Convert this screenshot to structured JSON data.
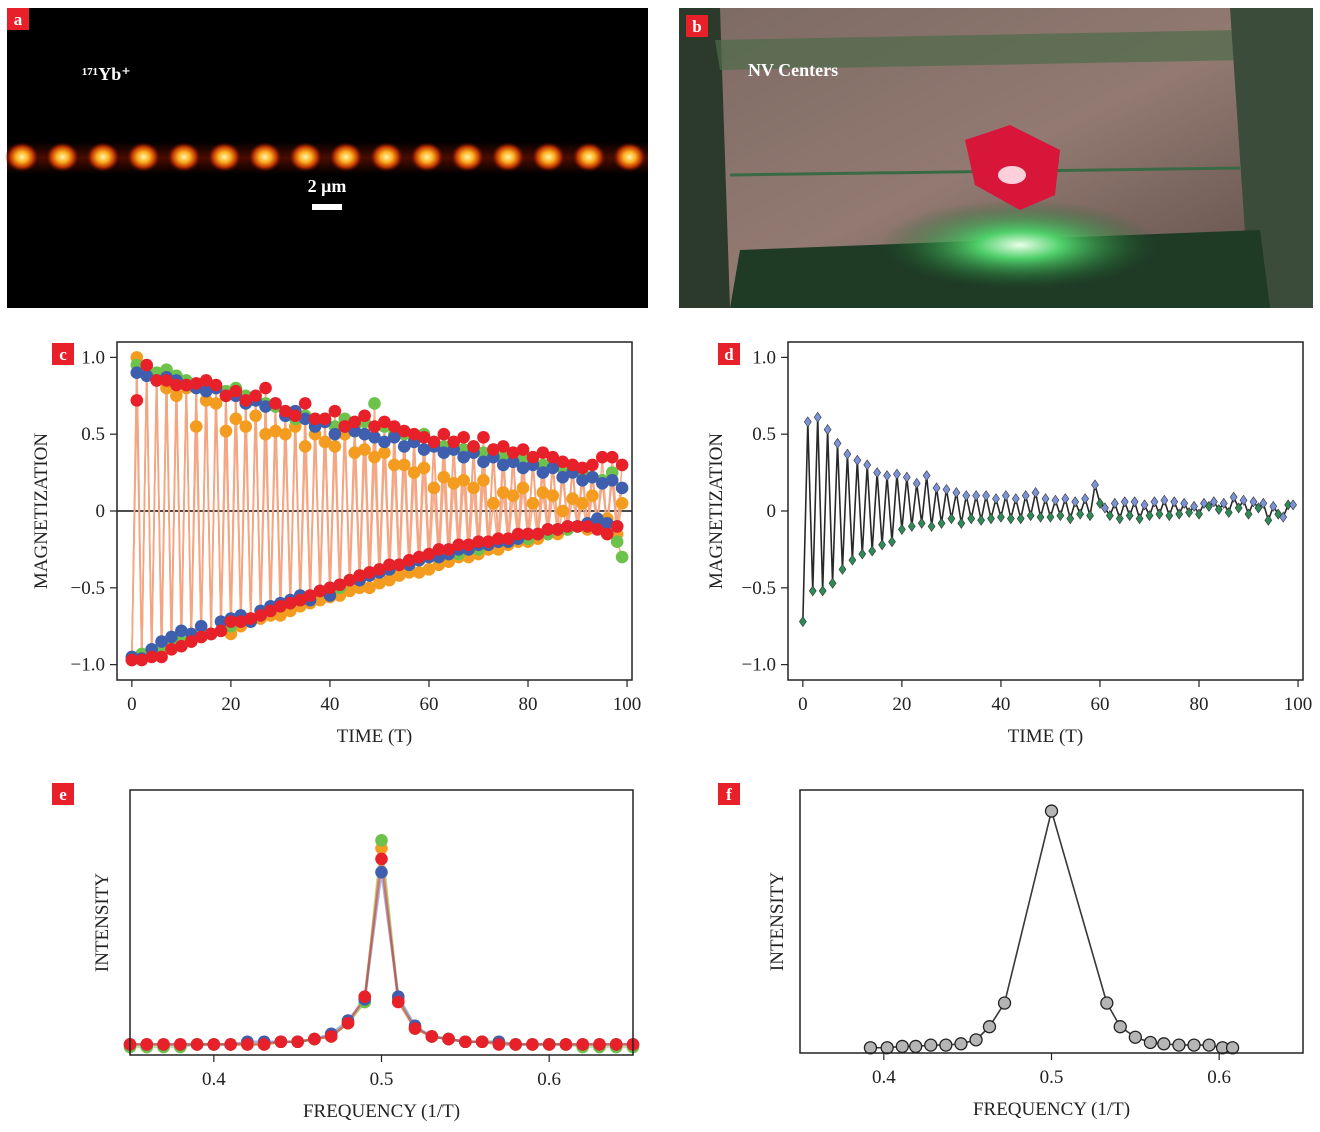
{
  "image_panels": [
    {
      "label": "a",
      "caption": "¹⁷¹Yb⁺",
      "scale_bar": "2 μm"
    },
    {
      "label": "b",
      "caption": "NV Centers"
    }
  ],
  "chart_data": [
    {
      "label": "c",
      "type": "line",
      "xlabel": "TIME (T)",
      "ylabel": "MAGNETIZATION",
      "marker": "circle",
      "line_color": "#f4a582",
      "x": [
        0,
        1,
        2,
        3,
        4,
        5,
        6,
        7,
        8,
        9,
        10,
        11,
        12,
        13,
        14,
        15,
        16,
        17,
        18,
        19,
        20,
        21,
        22,
        23,
        24,
        25,
        26,
        27,
        28,
        29,
        30,
        31,
        32,
        33,
        34,
        35,
        36,
        37,
        38,
        39,
        40,
        41,
        42,
        43,
        44,
        45,
        46,
        47,
        48,
        49,
        50,
        51,
        52,
        53,
        54,
        55,
        56,
        57,
        58,
        59,
        60,
        61,
        62,
        63,
        64,
        65,
        66,
        67,
        68,
        69,
        70,
        71,
        72,
        73,
        74,
        75,
        76,
        77,
        78,
        79,
        80,
        81,
        82,
        83,
        84,
        85,
        86,
        87,
        88,
        89,
        90,
        91,
        92,
        93,
        94,
        95,
        96,
        97,
        98,
        99
      ],
      "xlim": [
        -3,
        101
      ],
      "xticks": [
        0,
        20,
        40,
        60,
        80,
        100
      ],
      "ylim": [
        -1.1,
        1.1
      ],
      "yticks": [
        {
          "value": -1,
          "label": "−1.0"
        },
        {
          "value": -0.5,
          "label": "−0.5"
        },
        0,
        0.5,
        {
          "value": 1,
          "label": "1.0"
        }
      ],
      "hlines": [
        0
      ],
      "series": [
        {
          "color": "#f39c1f",
          "values": [
            -0.97,
            1.0,
            -0.95,
            0.92,
            -0.93,
            0.85,
            -0.9,
            0.8,
            -0.88,
            0.75,
            -0.86,
            0.8,
            -0.84,
            0.55,
            -0.82,
            0.72,
            -0.8,
            0.7,
            -0.78,
            0.52,
            -0.8,
            0.6,
            -0.75,
            0.55,
            -0.72,
            0.62,
            -0.7,
            0.5,
            -0.68,
            0.52,
            -0.68,
            0.5,
            -0.65,
            0.55,
            -0.62,
            0.42,
            -0.6,
            0.5,
            -0.58,
            0.45,
            -0.56,
            0.42,
            -0.55,
            0.5,
            -0.52,
            0.38,
            -0.5,
            0.4,
            -0.5,
            0.35,
            -0.47,
            0.38,
            -0.45,
            0.3,
            -0.42,
            0.3,
            -0.4,
            0.25,
            -0.4,
            0.28,
            -0.38,
            0.15,
            -0.35,
            0.22,
            -0.33,
            0.18,
            -0.3,
            0.2,
            -0.3,
            0.15,
            -0.28,
            0.2,
            -0.25,
            0.05,
            -0.25,
            0.12,
            -0.22,
            0.1,
            -0.2,
            0.15,
            -0.2,
            0.05,
            -0.18,
            0.12,
            -0.15,
            0.1,
            -0.15,
            0.0,
            -0.12,
            0.08,
            -0.1,
            0.05,
            -0.12,
            0.1,
            -0.08,
            -0.1,
            -0.05,
            0.2,
            -0.15,
            0.05
          ]
        },
        {
          "color": "#6cc24a",
          "values": [
            -0.96,
            0.95,
            -0.93,
            0.93,
            -0.92,
            0.9,
            -0.88,
            0.92,
            -0.87,
            0.88,
            -0.85,
            0.85,
            -0.85,
            0.83,
            -0.82,
            0.82,
            -0.8,
            0.8,
            -0.78,
            0.78,
            -0.75,
            0.8,
            -0.72,
            0.75,
            -0.7,
            0.72,
            -0.68,
            0.7,
            -0.65,
            0.68,
            -0.62,
            0.65,
            -0.6,
            0.6,
            -0.58,
            0.62,
            -0.55,
            0.58,
            -0.52,
            0.6,
            -0.5,
            0.55,
            -0.5,
            0.6,
            -0.45,
            0.55,
            -0.42,
            0.58,
            -0.4,
            0.7,
            -0.38,
            0.55,
            -0.38,
            0.5,
            -0.35,
            0.5,
            -0.35,
            0.48,
            -0.32,
            0.5,
            -0.3,
            0.45,
            -0.3,
            0.42,
            -0.28,
            0.45,
            -0.28,
            0.4,
            -0.25,
            0.42,
            -0.25,
            0.38,
            -0.22,
            0.4,
            -0.2,
            0.35,
            -0.2,
            0.38,
            -0.18,
            0.35,
            -0.18,
            0.32,
            -0.15,
            0.3,
            -0.15,
            0.32,
            -0.12,
            0.28,
            -0.12,
            0.3,
            -0.1,
            0.25,
            -0.1,
            0.22,
            -0.08,
            0.2,
            -0.15,
            0.25,
            -0.2,
            -0.3
          ]
        },
        {
          "color": "#3f5fae",
          "values": [
            -0.95,
            0.9,
            -0.96,
            0.88,
            -0.9,
            0.85,
            -0.85,
            0.87,
            -0.82,
            0.85,
            -0.78,
            0.82,
            -0.8,
            0.8,
            -0.75,
            0.78,
            -0.8,
            0.8,
            -0.72,
            0.75,
            -0.7,
            0.75,
            -0.68,
            0.7,
            -0.72,
            0.72,
            -0.65,
            0.68,
            -0.62,
            0.7,
            -0.6,
            0.62,
            -0.58,
            0.65,
            -0.55,
            0.6,
            -0.58,
            0.55,
            -0.52,
            0.58,
            -0.55,
            0.5,
            -0.48,
            0.55,
            -0.45,
            0.52,
            -0.45,
            0.5,
            -0.42,
            0.48,
            -0.4,
            0.45,
            -0.38,
            0.48,
            -0.35,
            0.42,
            -0.35,
            0.45,
            -0.32,
            0.4,
            -0.3,
            0.42,
            -0.3,
            0.38,
            -0.28,
            0.4,
            -0.25,
            0.35,
            -0.25,
            0.38,
            -0.22,
            0.32,
            -0.22,
            0.35,
            -0.2,
            0.3,
            -0.2,
            0.32,
            -0.18,
            0.28,
            -0.15,
            0.3,
            -0.15,
            0.25,
            -0.12,
            0.28,
            -0.12,
            0.22,
            -0.1,
            0.25,
            -0.1,
            0.2,
            -0.08,
            0.22,
            -0.05,
            0.18,
            -0.08,
            0.2,
            -0.1,
            0.15
          ]
        },
        {
          "color": "#e8202a",
          "values": [
            -0.97,
            0.72,
            -0.97,
            0.95,
            -0.95,
            0.85,
            -0.95,
            0.85,
            -0.9,
            0.82,
            -0.88,
            0.82,
            -0.85,
            0.83,
            -0.82,
            0.85,
            -0.8,
            0.82,
            -0.78,
            0.75,
            -0.72,
            0.78,
            -0.72,
            0.72,
            -0.7,
            0.75,
            -0.68,
            0.8,
            -0.65,
            0.7,
            -0.62,
            0.65,
            -0.6,
            0.62,
            -0.58,
            0.7,
            -0.55,
            0.6,
            -0.52,
            0.6,
            -0.5,
            0.65,
            -0.48,
            0.55,
            -0.45,
            0.58,
            -0.42,
            0.62,
            -0.4,
            0.55,
            -0.38,
            0.58,
            -0.35,
            0.55,
            -0.35,
            0.52,
            -0.32,
            0.5,
            -0.3,
            0.48,
            -0.28,
            0.45,
            -0.25,
            0.5,
            -0.25,
            0.45,
            -0.22,
            0.48,
            -0.22,
            0.42,
            -0.2,
            0.48,
            -0.2,
            0.4,
            -0.18,
            0.42,
            -0.18,
            0.38,
            -0.15,
            0.4,
            -0.15,
            0.35,
            -0.15,
            0.38,
            -0.12,
            0.35,
            -0.12,
            0.32,
            -0.1,
            0.3,
            -0.1,
            0.28,
            -0.1,
            0.3,
            -0.12,
            0.35,
            -0.15,
            0.35,
            -0.1,
            0.3
          ]
        }
      ]
    },
    {
      "label": "d",
      "type": "line",
      "xlabel": "TIME (T)",
      "ylabel": "MAGNETIZATION",
      "marker": "diamond",
      "line_color": "#111111",
      "marker_colors": [
        "#2e8b57",
        "#7b93d6"
      ],
      "x": [
        0,
        1,
        2,
        3,
        4,
        5,
        6,
        7,
        8,
        9,
        10,
        11,
        12,
        13,
        14,
        15,
        16,
        17,
        18,
        19,
        20,
        21,
        22,
        23,
        24,
        25,
        26,
        27,
        28,
        29,
        30,
        31,
        32,
        33,
        34,
        35,
        36,
        37,
        38,
        39,
        40,
        41,
        42,
        43,
        44,
        45,
        46,
        47,
        48,
        49,
        50,
        51,
        52,
        53,
        54,
        55,
        56,
        57,
        58,
        59,
        60,
        61,
        62,
        63,
        64,
        65,
        66,
        67,
        68,
        69,
        70,
        71,
        72,
        73,
        74,
        75,
        76,
        77,
        78,
        79,
        80,
        81,
        82,
        83,
        84,
        85,
        86,
        87,
        88,
        89,
        90,
        91,
        92,
        93,
        94,
        95,
        96,
        97,
        98,
        99
      ],
      "xlim": [
        -3,
        101
      ],
      "xticks": [
        0,
        20,
        40,
        60,
        80,
        100
      ],
      "ylim": [
        -1.1,
        1.1
      ],
      "yticks": [
        {
          "value": -1,
          "label": "−1.0"
        },
        {
          "value": -0.5,
          "label": "−0.5"
        },
        0,
        0.5,
        {
          "value": 1,
          "label": "1.0"
        }
      ],
      "series": [
        {
          "values": [
            -0.72,
            0.58,
            -0.52,
            0.61,
            -0.52,
            0.53,
            -0.47,
            0.44,
            -0.38,
            0.37,
            -0.32,
            0.33,
            -0.28,
            0.3,
            -0.26,
            0.25,
            -0.22,
            0.23,
            -0.2,
            0.24,
            -0.12,
            0.22,
            -0.1,
            0.18,
            -0.08,
            0.23,
            -0.1,
            0.15,
            -0.08,
            0.14,
            -0.05,
            0.12,
            -0.08,
            0.1,
            -0.05,
            0.1,
            -0.06,
            0.1,
            -0.05,
            0.08,
            -0.04,
            0.1,
            -0.05,
            0.08,
            -0.05,
            0.1,
            -0.03,
            0.12,
            -0.04,
            0.08,
            -0.04,
            0.07,
            -0.03,
            0.08,
            -0.05,
            0.06,
            -0.02,
            0.08,
            -0.03,
            0.17,
            0.05,
            0.02,
            -0.03,
            0.05,
            -0.05,
            0.06,
            -0.03,
            0.06,
            -0.05,
            0.04,
            -0.03,
            0.06,
            -0.02,
            0.07,
            -0.03,
            0.06,
            -0.02,
            0.05,
            -0.01,
            0.03,
            -0.02,
            0.05,
            0.03,
            0.06,
            0.01,
            0.05,
            -0.01,
            0.09,
            0.02,
            0.07,
            -0.02,
            0.06,
            0.02,
            0.05,
            -0.06,
            0.03,
            -0.02,
            -0.04,
            0.04,
            0.04
          ]
        }
      ]
    },
    {
      "label": "e",
      "type": "line",
      "xlabel": "FREQUENCY (1/T)",
      "ylabel": "INTENSITY",
      "marker": "circle",
      "x": [
        0.35,
        0.36,
        0.37,
        0.38,
        0.39,
        0.4,
        0.41,
        0.42,
        0.43,
        0.44,
        0.45,
        0.46,
        0.47,
        0.48,
        0.49,
        0.5,
        0.51,
        0.52,
        0.53,
        0.54,
        0.55,
        0.56,
        0.57,
        0.58,
        0.59,
        0.6,
        0.61,
        0.62,
        0.63,
        0.64,
        0.65
      ],
      "xlim": [
        0.35,
        0.65
      ],
      "xticks": [
        0.4,
        0.5,
        0.6
      ],
      "ylim": [
        0,
        1
      ],
      "series": [
        {
          "color": "#f39c1f",
          "values": [
            0.04,
            0.04,
            0.04,
            0.04,
            0.04,
            0.04,
            0.04,
            0.04,
            0.04,
            0.05,
            0.05,
            0.06,
            0.07,
            0.12,
            0.2,
            0.78,
            0.21,
            0.1,
            0.07,
            0.06,
            0.05,
            0.05,
            0.05,
            0.04,
            0.04,
            0.04,
            0.04,
            0.04,
            0.04,
            0.04,
            0.04
          ]
        },
        {
          "color": "#6cc24a",
          "values": [
            0.03,
            0.03,
            0.03,
            0.03,
            0.04,
            0.04,
            0.04,
            0.04,
            0.04,
            0.05,
            0.05,
            0.06,
            0.07,
            0.12,
            0.2,
            0.81,
            0.21,
            0.1,
            0.07,
            0.06,
            0.05,
            0.05,
            0.04,
            0.04,
            0.04,
            0.04,
            0.04,
            0.03,
            0.03,
            0.03,
            0.03
          ]
        },
        {
          "color": "#3f5fae",
          "values": [
            0.04,
            0.04,
            0.04,
            0.04,
            0.04,
            0.04,
            0.04,
            0.05,
            0.05,
            0.05,
            0.05,
            0.06,
            0.08,
            0.13,
            0.21,
            0.69,
            0.22,
            0.11,
            0.07,
            0.06,
            0.05,
            0.05,
            0.05,
            0.04,
            0.04,
            0.04,
            0.04,
            0.04,
            0.04,
            0.04,
            0.04
          ]
        },
        {
          "color": "#e8202a",
          "values": [
            0.04,
            0.04,
            0.04,
            0.04,
            0.04,
            0.04,
            0.04,
            0.04,
            0.04,
            0.05,
            0.05,
            0.06,
            0.07,
            0.12,
            0.22,
            0.74,
            0.2,
            0.1,
            0.07,
            0.06,
            0.05,
            0.05,
            0.04,
            0.04,
            0.04,
            0.04,
            0.04,
            0.04,
            0.04,
            0.04,
            0.04
          ]
        }
      ]
    },
    {
      "label": "f",
      "type": "line",
      "xlabel": "FREQUENCY (1/T)",
      "ylabel": "INTENSITY",
      "marker": "circle",
      "line_color": "#222222",
      "marker_color": "#b5b5b5",
      "x": [
        0.392,
        0.402,
        0.411,
        0.419,
        0.428,
        0.437,
        0.446,
        0.455,
        0.463,
        0.472,
        0.5,
        0.533,
        0.541,
        0.55,
        0.559,
        0.567,
        0.576,
        0.585,
        0.594,
        0.602,
        0.608
      ],
      "xlim": [
        0.35,
        0.65
      ],
      "xticks": [
        0.4,
        0.5,
        0.6
      ],
      "ylim": [
        0,
        1
      ],
      "series": [
        {
          "values": [
            0.02,
            0.02,
            0.025,
            0.025,
            0.03,
            0.03,
            0.035,
            0.05,
            0.1,
            0.19,
            0.92,
            0.19,
            0.1,
            0.06,
            0.04,
            0.035,
            0.03,
            0.03,
            0.03,
            0.02,
            0.02
          ]
        }
      ]
    }
  ]
}
